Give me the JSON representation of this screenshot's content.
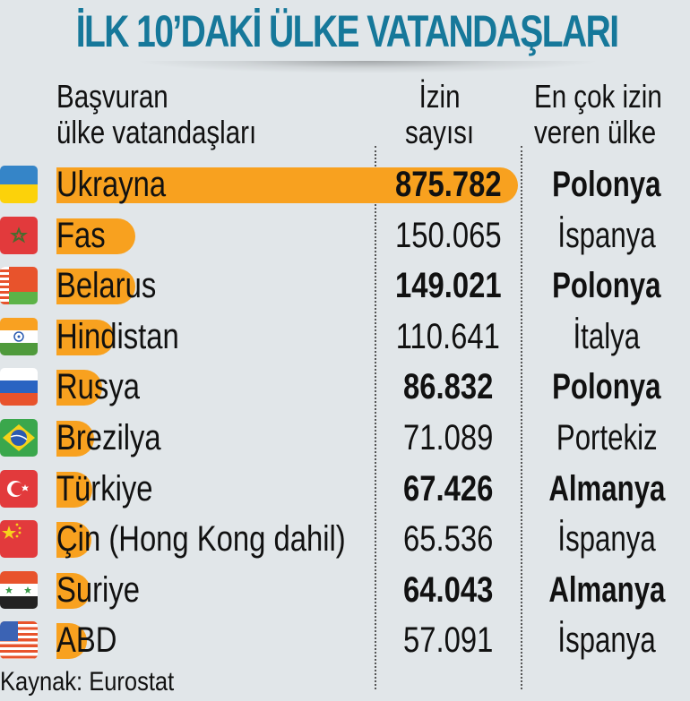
{
  "title": "İLK 10’DAKİ ÜLKE VATANDAŞLARI",
  "headers": {
    "country_line1": "Başvuran",
    "country_line2": "ülke vatandaşları",
    "count_line1": "İzin",
    "count_line2": "sayısı",
    "top_line1": "En çok izin",
    "top_line2": "veren ülke"
  },
  "rows": [
    {
      "flag": "ukraine-flag",
      "country": "Ukrayna",
      "count": "875.782",
      "top_country": "Polonya",
      "bold": true
    },
    {
      "flag": "morocco-flag",
      "country": "Fas",
      "count": "150.065",
      "top_country": "İspanya",
      "bold": false
    },
    {
      "flag": "belarus-flag",
      "country": "Belarus",
      "count": "149.021",
      "top_country": "Polonya",
      "bold": true
    },
    {
      "flag": "india-flag",
      "country": "Hindistan",
      "count": "110.641",
      "top_country": "İtalya",
      "bold": false
    },
    {
      "flag": "russia-flag",
      "country": "Rusya",
      "count": "86.832",
      "top_country": "Polonya",
      "bold": true
    },
    {
      "flag": "brazil-flag",
      "country": "Brezilya",
      "count": "71.089",
      "top_country": "Portekiz",
      "bold": false
    },
    {
      "flag": "turkey-flag",
      "country": "Türkiye",
      "count": "67.426",
      "top_country": "Almanya",
      "bold": true
    },
    {
      "flag": "china-flag",
      "country": "Çin (Hong Kong dahil)",
      "count": "65.536",
      "top_country": "İspanya",
      "bold": false
    },
    {
      "flag": "syria-flag",
      "country": "Suriye",
      "count": "64.043",
      "top_country": "Almanya",
      "bold": true
    },
    {
      "flag": "usa-flag",
      "country": "ABD",
      "count": "57.091",
      "top_country": "İspanya",
      "bold": false
    }
  ],
  "source": "Kaynak: Eurostat",
  "colors": {
    "title": "#16789a",
    "bar": "#f8a11f",
    "background": "#e1e6e9"
  },
  "chart_data": {
    "type": "bar",
    "orientation": "horizontal",
    "title": "İLK 10’DAKİ ÜLKE VATANDAŞLARI",
    "xlabel": "İzin sayısı",
    "ylabel": "Başvuran ülke vatandaşları",
    "categories": [
      "Ukrayna",
      "Fas",
      "Belarus",
      "Hindistan",
      "Rusya",
      "Brezilya",
      "Türkiye",
      "Çin (Hong Kong dahil)",
      "Suriye",
      "ABD"
    ],
    "values": [
      875782,
      150065,
      149021,
      110641,
      86832,
      71089,
      67426,
      65536,
      64043,
      57091
    ],
    "annotations": {
      "En çok izin veren ülke": [
        "Polonya",
        "İspanya",
        "Polonya",
        "İtalya",
        "Polonya",
        "Portekiz",
        "Almanya",
        "İspanya",
        "Almanya",
        "İspanya"
      ]
    },
    "source": "Kaynak: Eurostat",
    "grid": false,
    "legend": null
  }
}
